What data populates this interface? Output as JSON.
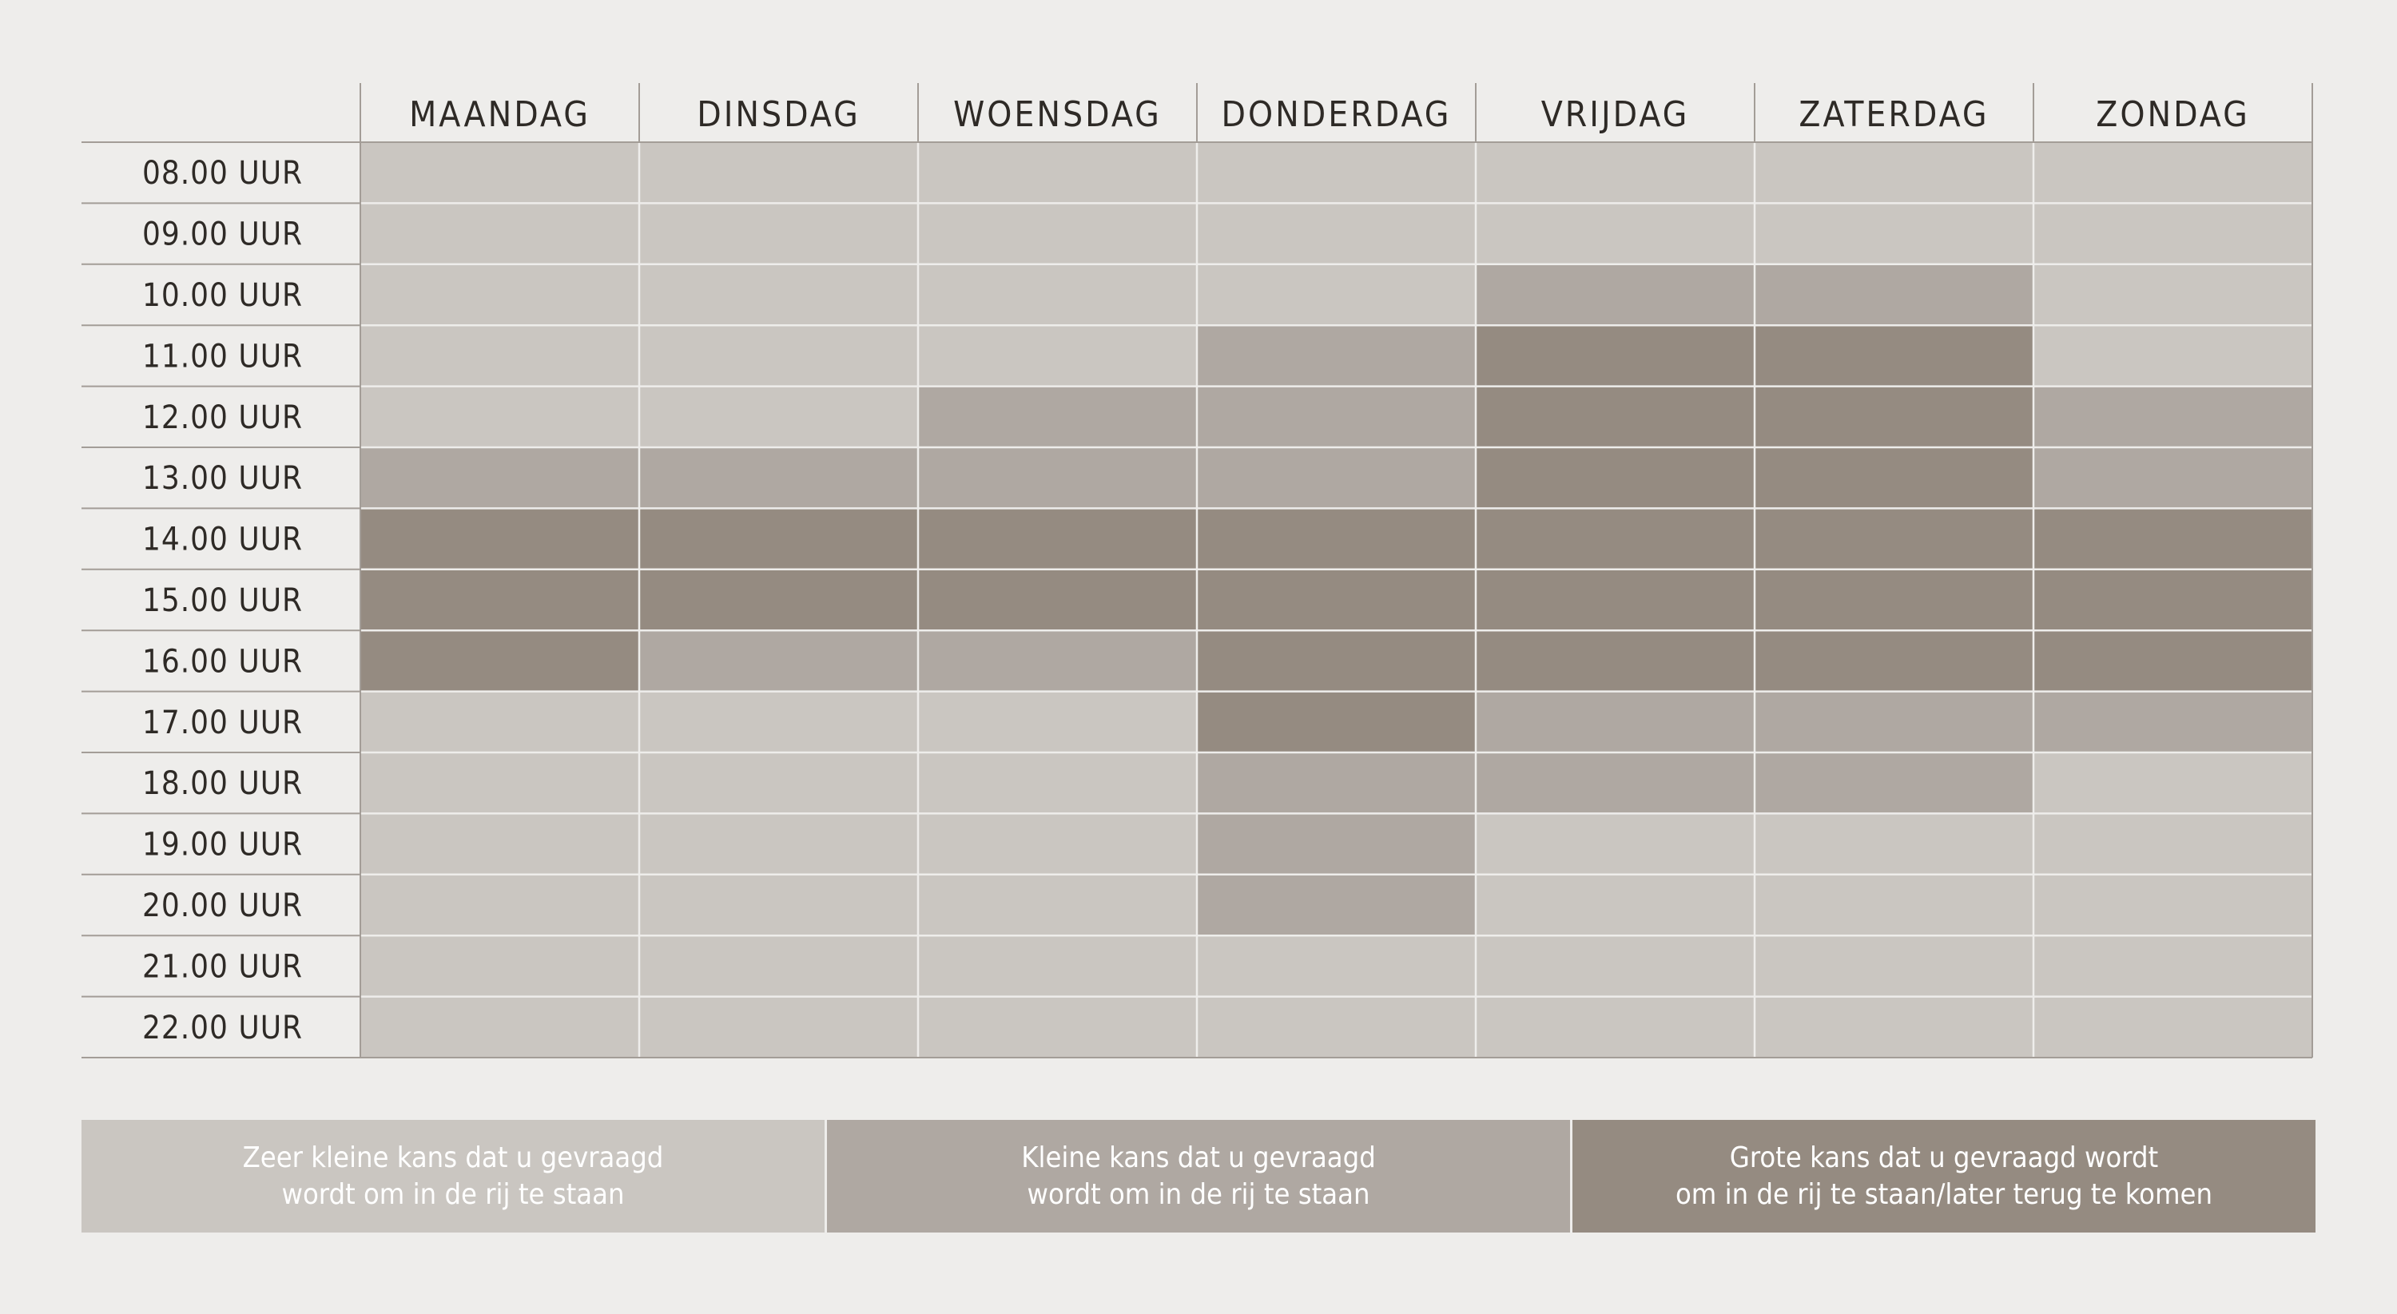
{
  "colors": {
    "background": "#eeedeb",
    "level_1": "#cac6c1",
    "level_2": "#afa8a2",
    "level_3": "#958b81",
    "text": "#2e2a26",
    "grid": "#eeedeb"
  },
  "chart_data": {
    "type": "heatmap",
    "days": [
      "MAANDAG",
      "DINSDAG",
      "WOENSDAG",
      "DONDERDAG",
      "VRIJDAG",
      "ZATERDAG",
      "ZONDAG"
    ],
    "hours": [
      "08.00 UUR",
      "09.00 UUR",
      "10.00 UUR",
      "11.00 UUR",
      "12.00 UUR",
      "13.00 UUR",
      "14.00 UUR",
      "15.00 UUR",
      "16.00 UUR",
      "17.00 UUR",
      "18.00 UUR",
      "19.00 UUR",
      "20.00 UUR",
      "21.00 UUR",
      "22.00 UUR"
    ],
    "levels_note": "1 = zeer kleine kans, 2 = kleine kans, 3 = grote kans",
    "values": [
      [
        1,
        1,
        1,
        1,
        1,
        1,
        1
      ],
      [
        1,
        1,
        1,
        1,
        1,
        1,
        1
      ],
      [
        1,
        1,
        1,
        1,
        2,
        2,
        1
      ],
      [
        1,
        1,
        1,
        2,
        3,
        3,
        1
      ],
      [
        1,
        1,
        2,
        2,
        3,
        3,
        2
      ],
      [
        2,
        2,
        2,
        2,
        3,
        3,
        2
      ],
      [
        3,
        3,
        3,
        3,
        3,
        3,
        3
      ],
      [
        3,
        3,
        3,
        3,
        3,
        3,
        3
      ],
      [
        3,
        2,
        2,
        3,
        3,
        3,
        3
      ],
      [
        1,
        1,
        1,
        3,
        2,
        2,
        2
      ],
      [
        1,
        1,
        1,
        2,
        2,
        2,
        1
      ],
      [
        1,
        1,
        1,
        2,
        1,
        1,
        1
      ],
      [
        1,
        1,
        1,
        2,
        1,
        1,
        1
      ],
      [
        1,
        1,
        1,
        1,
        1,
        1,
        1
      ],
      [
        1,
        1,
        1,
        1,
        1,
        1,
        1
      ]
    ],
    "legend": [
      {
        "level": 1,
        "label": "Zeer kleine kans dat u gevraagd\nwordt om in de rij te staan"
      },
      {
        "level": 2,
        "label": "Kleine kans dat u gevraagd\nwordt om in de rij te staan"
      },
      {
        "level": 3,
        "label": "Grote kans dat u gevraagd wordt\nom in de rij te staan/later terug te komen"
      }
    ]
  }
}
